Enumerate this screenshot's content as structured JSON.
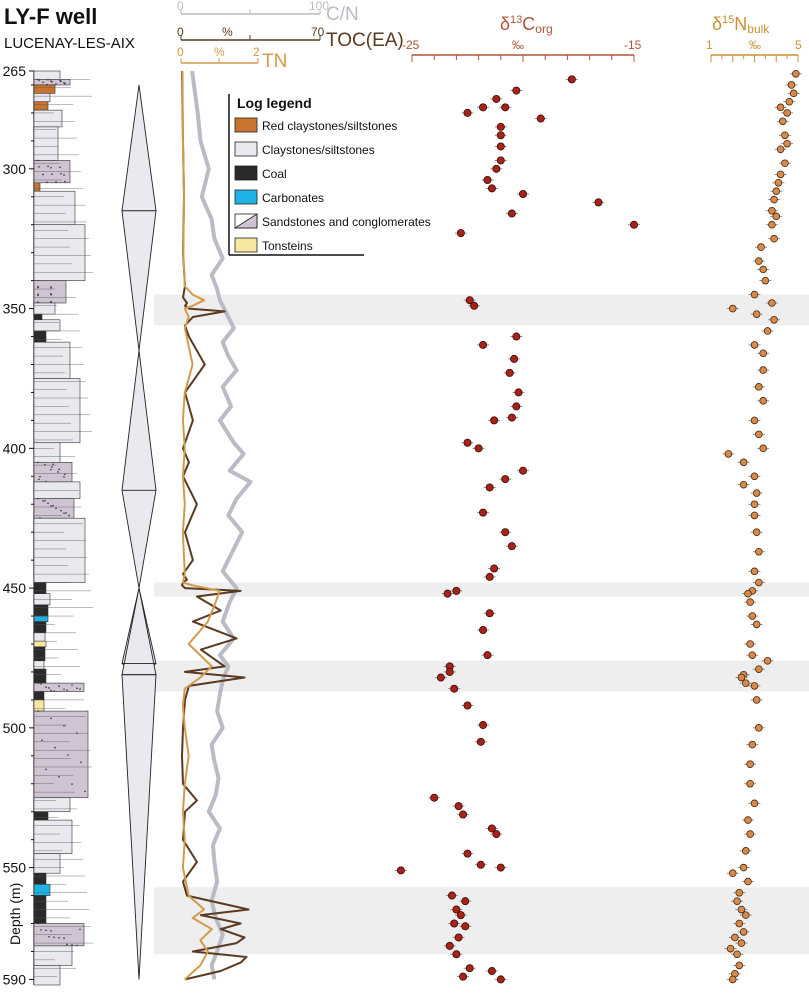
{
  "header": {
    "title": "LY-F well",
    "subtitle": "LUCENAY-LES-AIX"
  },
  "depth_axis": {
    "label": "Depth (m)",
    "ticks": [
      265,
      300,
      350,
      400,
      450,
      500,
      550,
      590
    ],
    "range": [
      265,
      592
    ]
  },
  "shaded_intervals": [
    [
      345,
      356
    ],
    [
      448,
      453
    ],
    [
      476,
      487
    ],
    [
      557,
      581
    ]
  ],
  "legend": {
    "title": "Log legend",
    "items": [
      {
        "label": "Red claystones/siltstones",
        "color": "#c8742f"
      },
      {
        "label": "Claystones/siltstones",
        "color": "#e9e9ef"
      },
      {
        "label": "Coal",
        "color": "#2a2a2a"
      },
      {
        "label": "Carbonates",
        "color": "#1fb3e5"
      },
      {
        "label": "Sandstones and conglomerates",
        "color": "#cfc4d4"
      },
      {
        "label": "Tonsteins",
        "color": "#f7e8a0"
      }
    ]
  },
  "colors": {
    "cn": "#b9bcc4",
    "toc": "#5b3a1f",
    "tn": "#d49a4c",
    "d13c_axis": "#b0543a",
    "d15n_axis": "#c9922e",
    "point_c": "#a82218",
    "point_n": "#d98a4a",
    "trend": "#e6c2b3",
    "shade": "#eeeeee"
  },
  "chart_data": [
    {
      "type": "line",
      "panel": "geochemistry",
      "axes": [
        {
          "name": "C/N",
          "range": [
            0,
            100
          ],
          "tick_labels": [
            "0",
            "100"
          ],
          "unit": ""
        },
        {
          "name": "TOC(EA)",
          "range": [
            0,
            70
          ],
          "tick_labels": [
            "0",
            "%",
            "70"
          ],
          "unit": "%"
        },
        {
          "name": "TN",
          "range": [
            0,
            2
          ],
          "tick_labels": [
            "0",
            "%",
            "2"
          ],
          "unit": "%"
        }
      ],
      "series": [
        {
          "name": "C/N",
          "x": [
            8,
            12,
            14,
            20,
            15,
            22,
            24,
            30,
            22,
            26,
            28,
            33,
            38,
            30,
            34,
            40,
            30,
            36,
            28,
            38,
            45,
            35,
            50,
            40,
            34,
            44,
            36,
            30,
            40,
            35,
            30,
            38,
            28,
            34,
            30,
            28,
            26,
            30,
            22,
            24,
            27,
            25,
            20,
            28,
            23,
            24,
            26,
            22,
            25,
            30,
            26,
            22,
            24
          ],
          "y": [
            265,
            280,
            290,
            300,
            310,
            318,
            325,
            332,
            338,
            343,
            347,
            352,
            357,
            362,
            367,
            372,
            378,
            385,
            390,
            398,
            402,
            408,
            412,
            418,
            424,
            430,
            438,
            444,
            450,
            455,
            462,
            468,
            474,
            478,
            483,
            488,
            494,
            500,
            506,
            512,
            518,
            524,
            530,
            536,
            542,
            548,
            555,
            562,
            568,
            574,
            580,
            585,
            590
          ]
        },
        {
          "name": "TOC(EA)",
          "x": [
            0.5,
            1,
            1.5,
            1,
            2,
            1,
            3,
            2,
            4,
            22,
            6,
            2,
            4,
            12,
            2,
            6,
            1,
            4,
            1,
            8,
            2,
            6,
            1,
            3,
            1,
            0.5,
            2,
            30,
            8,
            20,
            6,
            28,
            10,
            22,
            2,
            32,
            4,
            2,
            1,
            0.5,
            1,
            8,
            2,
            1,
            8,
            1,
            3,
            34,
            10,
            30,
            20,
            32,
            28,
            6,
            33,
            30,
            20,
            2
          ],
          "y": [
            265,
            290,
            310,
            330,
            342,
            346,
            348,
            349,
            350,
            351,
            353,
            356,
            360,
            370,
            380,
            390,
            400,
            405,
            410,
            420,
            430,
            440,
            445,
            447,
            448,
            449,
            450,
            451,
            453,
            458,
            462,
            468,
            472,
            478,
            480,
            482,
            485,
            490,
            500,
            510,
            520,
            526,
            530,
            540,
            548,
            555,
            560,
            565,
            567,
            570,
            572,
            575,
            577,
            580,
            582,
            584,
            587,
            590
          ]
        },
        {
          "name": "TN",
          "x": [
            0.04,
            0.05,
            0.08,
            0.06,
            0.1,
            0.3,
            0.6,
            0.3,
            0.1,
            0.2,
            0.1,
            0.3,
            0.1,
            0.05,
            0.1,
            0.05,
            0.1,
            0.05,
            0.1,
            0.05,
            0.3,
            1.0,
            0.9,
            0.7,
            0.2,
            0.8,
            0.5,
            0.1,
            0.05,
            0.1,
            0.2,
            0.1,
            0.05,
            0.1,
            0.05,
            0.2,
            0.6,
            0.3,
            0.8,
            0.5,
            0.7,
            0.5,
            0.1
          ],
          "y": [
            265,
            290,
            310,
            330,
            342,
            345,
            347,
            349,
            350,
            353,
            357,
            370,
            380,
            390,
            400,
            410,
            420,
            430,
            445,
            448,
            449,
            451,
            455,
            462,
            470,
            478,
            482,
            486,
            492,
            500,
            510,
            520,
            530,
            540,
            550,
            560,
            565,
            568,
            572,
            576,
            580,
            585,
            590
          ]
        }
      ]
    },
    {
      "type": "scatter",
      "name": "δ13Corg",
      "axis": {
        "label": "δ13Corg",
        "unit": "‰",
        "range": [
          -25,
          -15
        ],
        "tick_labels": [
          "-25",
          "‰",
          "-15"
        ]
      },
      "points": [
        {
          "x": -17.8,
          "y": 268
        },
        {
          "x": -20.3,
          "y": 272
        },
        {
          "x": -21.2,
          "y": 275
        },
        {
          "x": -20.8,
          "y": 278
        },
        {
          "x": -22.5,
          "y": 280
        },
        {
          "x": -21.8,
          "y": 278
        },
        {
          "x": -19.2,
          "y": 282
        },
        {
          "x": -21.0,
          "y": 285
        },
        {
          "x": -21.0,
          "y": 288
        },
        {
          "x": -21.0,
          "y": 292
        },
        {
          "x": -21.0,
          "y": 297
        },
        {
          "x": -21.2,
          "y": 300
        },
        {
          "x": -21.6,
          "y": 304
        },
        {
          "x": -21.4,
          "y": 307
        },
        {
          "x": -20.0,
          "y": 309
        },
        {
          "x": -16.6,
          "y": 312
        },
        {
          "x": -20.5,
          "y": 316
        },
        {
          "x": -15.0,
          "y": 320
        },
        {
          "x": -22.8,
          "y": 323
        },
        {
          "x": -22.4,
          "y": 347
        },
        {
          "x": -22.2,
          "y": 349
        },
        {
          "x": -20.3,
          "y": 360
        },
        {
          "x": -21.8,
          "y": 363
        },
        {
          "x": -20.4,
          "y": 368
        },
        {
          "x": -20.6,
          "y": 373
        },
        {
          "x": -20.2,
          "y": 380
        },
        {
          "x": -20.3,
          "y": 385
        },
        {
          "x": -20.5,
          "y": 389
        },
        {
          "x": -21.3,
          "y": 390
        },
        {
          "x": -22.5,
          "y": 398
        },
        {
          "x": -22.0,
          "y": 400
        },
        {
          "x": -20.0,
          "y": 408
        },
        {
          "x": -20.8,
          "y": 411
        },
        {
          "x": -21.5,
          "y": 414
        },
        {
          "x": -21.8,
          "y": 423
        },
        {
          "x": -20.8,
          "y": 430
        },
        {
          "x": -20.5,
          "y": 435
        },
        {
          "x": -21.3,
          "y": 443
        },
        {
          "x": -21.5,
          "y": 446
        },
        {
          "x": -23.0,
          "y": 451
        },
        {
          "x": -23.4,
          "y": 452
        },
        {
          "x": -21.5,
          "y": 459
        },
        {
          "x": -21.8,
          "y": 465
        },
        {
          "x": -21.6,
          "y": 474
        },
        {
          "x": -23.3,
          "y": 478
        },
        {
          "x": -23.3,
          "y": 480
        },
        {
          "x": -23.7,
          "y": 482
        },
        {
          "x": -23.1,
          "y": 486
        },
        {
          "x": -22.5,
          "y": 492
        },
        {
          "x": -21.8,
          "y": 499
        },
        {
          "x": -21.9,
          "y": 505
        },
        {
          "x": -24.0,
          "y": 525
        },
        {
          "x": -22.9,
          "y": 528
        },
        {
          "x": -22.7,
          "y": 531
        },
        {
          "x": -21.4,
          "y": 536
        },
        {
          "x": -21.2,
          "y": 538
        },
        {
          "x": -22.5,
          "y": 545
        },
        {
          "x": -21.9,
          "y": 549
        },
        {
          "x": -21.0,
          "y": 550
        },
        {
          "x": -25.5,
          "y": 551
        },
        {
          "x": -23.2,
          "y": 560
        },
        {
          "x": -22.6,
          "y": 562
        },
        {
          "x": -23.0,
          "y": 565
        },
        {
          "x": -22.8,
          "y": 567
        },
        {
          "x": -23.1,
          "y": 570
        },
        {
          "x": -22.6,
          "y": 571
        },
        {
          "x": -22.9,
          "y": 575
        },
        {
          "x": -23.3,
          "y": 578
        },
        {
          "x": -23.0,
          "y": 581
        },
        {
          "x": -22.4,
          "y": 586
        },
        {
          "x": -21.4,
          "y": 587
        },
        {
          "x": -22.7,
          "y": 589
        },
        {
          "x": -21.0,
          "y": 590
        }
      ],
      "trend": {
        "x": [
          -20.3,
          -20.8,
          -20.7,
          -21.0,
          -21.8,
          -22.2,
          -21.5,
          -20.8,
          -21.4,
          -22.2,
          -22.8,
          -23.1,
          -23.0,
          -22.8,
          -22.6,
          -22.6,
          -22.3,
          -21.8
        ],
        "y": [
          272,
          285,
          300,
          315,
          330,
          350,
          370,
          390,
          410,
          430,
          460,
          490,
          510,
          530,
          550,
          570,
          582,
          590
        ]
      }
    },
    {
      "type": "scatter",
      "name": "δ15Nbulk",
      "axis": {
        "label": "δ15Nbulk",
        "unit": "‰",
        "range": [
          1,
          5
        ],
        "tick_labels": [
          "1",
          "‰",
          "5"
        ]
      },
      "points": [
        {
          "x": 4.9,
          "y": 266
        },
        {
          "x": 4.7,
          "y": 270
        },
        {
          "x": 4.8,
          "y": 273
        },
        {
          "x": 4.6,
          "y": 276
        },
        {
          "x": 4.2,
          "y": 278
        },
        {
          "x": 4.5,
          "y": 280
        },
        {
          "x": 4.3,
          "y": 283
        },
        {
          "x": 4.4,
          "y": 288
        },
        {
          "x": 4.5,
          "y": 291
        },
        {
          "x": 4.2,
          "y": 293
        },
        {
          "x": 4.4,
          "y": 298
        },
        {
          "x": 4.2,
          "y": 302
        },
        {
          "x": 4.1,
          "y": 305
        },
        {
          "x": 4.0,
          "y": 308
        },
        {
          "x": 3.9,
          "y": 311
        },
        {
          "x": 3.8,
          "y": 315
        },
        {
          "x": 4.0,
          "y": 317
        },
        {
          "x": 3.8,
          "y": 320
        },
        {
          "x": 3.9,
          "y": 325
        },
        {
          "x": 3.3,
          "y": 328
        },
        {
          "x": 3.2,
          "y": 333
        },
        {
          "x": 3.4,
          "y": 336
        },
        {
          "x": 3.5,
          "y": 340
        },
        {
          "x": 3.0,
          "y": 345
        },
        {
          "x": 3.8,
          "y": 348
        },
        {
          "x": 2.0,
          "y": 350
        },
        {
          "x": 3.1,
          "y": 352
        },
        {
          "x": 3.9,
          "y": 354
        },
        {
          "x": 3.6,
          "y": 358
        },
        {
          "x": 3.0,
          "y": 363
        },
        {
          "x": 3.4,
          "y": 366
        },
        {
          "x": 3.4,
          "y": 372
        },
        {
          "x": 3.2,
          "y": 378
        },
        {
          "x": 3.4,
          "y": 383
        },
        {
          "x": 3.0,
          "y": 390
        },
        {
          "x": 3.2,
          "y": 395
        },
        {
          "x": 3.4,
          "y": 400
        },
        {
          "x": 1.8,
          "y": 402
        },
        {
          "x": 2.5,
          "y": 405
        },
        {
          "x": 3.0,
          "y": 410
        },
        {
          "x": 2.5,
          "y": 413
        },
        {
          "x": 3.1,
          "y": 416
        },
        {
          "x": 3.0,
          "y": 420
        },
        {
          "x": 3.0,
          "y": 424
        },
        {
          "x": 3.1,
          "y": 430
        },
        {
          "x": 3.2,
          "y": 437
        },
        {
          "x": 3.0,
          "y": 444
        },
        {
          "x": 3.2,
          "y": 448
        },
        {
          "x": 2.9,
          "y": 451
        },
        {
          "x": 2.7,
          "y": 452
        },
        {
          "x": 2.8,
          "y": 455
        },
        {
          "x": 2.9,
          "y": 460
        },
        {
          "x": 3.1,
          "y": 463
        },
        {
          "x": 2.8,
          "y": 470
        },
        {
          "x": 2.9,
          "y": 474
        },
        {
          "x": 3.6,
          "y": 476
        },
        {
          "x": 3.2,
          "y": 479
        },
        {
          "x": 2.5,
          "y": 481
        },
        {
          "x": 2.4,
          "y": 482
        },
        {
          "x": 2.6,
          "y": 484
        },
        {
          "x": 3.0,
          "y": 485
        },
        {
          "x": 3.1,
          "y": 490
        },
        {
          "x": 3.2,
          "y": 500
        },
        {
          "x": 2.9,
          "y": 506
        },
        {
          "x": 2.8,
          "y": 513
        },
        {
          "x": 2.8,
          "y": 520
        },
        {
          "x": 3.0,
          "y": 527
        },
        {
          "x": 2.7,
          "y": 533
        },
        {
          "x": 2.8,
          "y": 538
        },
        {
          "x": 2.6,
          "y": 544
        },
        {
          "x": 2.5,
          "y": 550
        },
        {
          "x": 2.0,
          "y": 552
        },
        {
          "x": 2.7,
          "y": 555
        },
        {
          "x": 2.3,
          "y": 559
        },
        {
          "x": 2.2,
          "y": 562
        },
        {
          "x": 2.4,
          "y": 565
        },
        {
          "x": 2.6,
          "y": 567
        },
        {
          "x": 2.3,
          "y": 570
        },
        {
          "x": 2.5,
          "y": 573
        },
        {
          "x": 2.1,
          "y": 575
        },
        {
          "x": 2.4,
          "y": 577
        },
        {
          "x": 1.9,
          "y": 579
        },
        {
          "x": 2.2,
          "y": 581
        },
        {
          "x": 2.3,
          "y": 585
        },
        {
          "x": 2.1,
          "y": 588
        },
        {
          "x": 2.0,
          "y": 590
        }
      ],
      "trend": {
        "x": [
          4.7,
          4.4,
          4.0,
          3.7,
          3.4,
          3.2,
          3.1,
          3.0,
          2.9,
          2.8,
          2.7,
          2.5,
          2.3,
          2.1
        ],
        "y": [
          266,
          290,
          315,
          340,
          365,
          395,
          425,
          455,
          485,
          515,
          540,
          560,
          578,
          590
        ]
      }
    }
  ]
}
